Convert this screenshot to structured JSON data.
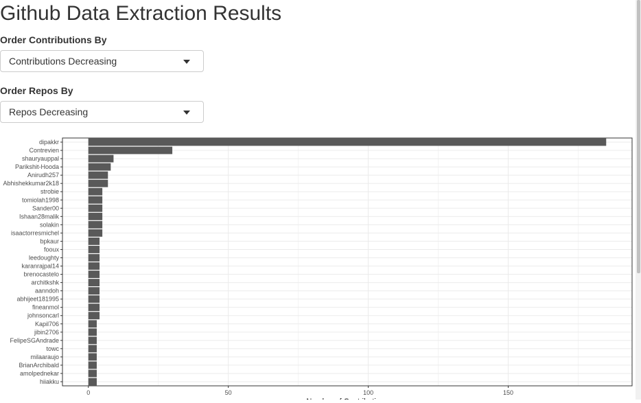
{
  "title": "Github Data Extraction Results",
  "controls": {
    "contrib_label": "Order Contributions By",
    "contrib_value": "Contributions Decreasing",
    "repos_label": "Order Repos By",
    "repos_value": "Repos Decreasing"
  },
  "chart_data": {
    "type": "bar",
    "orientation": "horizontal",
    "categories": [
      "dipakkr",
      "Contrevien",
      "shauryauppal",
      "Parikshit-Hooda",
      "Anirudh257",
      "Abhishekkumar2k18",
      "strobie",
      "tomiolah1998",
      "Sander00",
      "Ishaan28malik",
      "solakin",
      "isaactorresmichel",
      "bpkaur",
      "fooux",
      "leedoughty",
      "karanrajpal14",
      "brenocastelo",
      "architkshk",
      "aanndoh",
      "abhijeet181995",
      "fineanmol",
      "johnsoncarl",
      "Kapil706",
      "jibin2706",
      "FelipeSGAndrade",
      "towc",
      "milaaraujo",
      "BrianArchibald",
      "amolpednekar",
      "hiiakku"
    ],
    "values": [
      185,
      30,
      9,
      8,
      7,
      7,
      5,
      5,
      5,
      5,
      5,
      5,
      4,
      4,
      4,
      4,
      4,
      4,
      4,
      4,
      4,
      4,
      3,
      3,
      3,
      3,
      3,
      3,
      3,
      3
    ],
    "xticks": [
      "0",
      "50",
      "100",
      "150"
    ],
    "xlim": [
      -9.25,
      194.25
    ],
    "xlabel": "Number of Contributions",
    "bar_color": "#595959",
    "grid": true
  }
}
